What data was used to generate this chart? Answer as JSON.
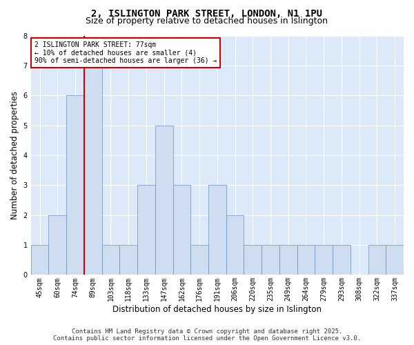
{
  "title": "2, ISLINGTON PARK STREET, LONDON, N1 1PU",
  "subtitle": "Size of property relative to detached houses in Islington",
  "xlabel": "Distribution of detached houses by size in Islington",
  "ylabel": "Number of detached properties",
  "categories": [
    "45sqm",
    "60sqm",
    "74sqm",
    "89sqm",
    "103sqm",
    "118sqm",
    "133sqm",
    "147sqm",
    "162sqm",
    "176sqm",
    "191sqm",
    "206sqm",
    "220sqm",
    "235sqm",
    "249sqm",
    "264sqm",
    "279sqm",
    "293sqm",
    "308sqm",
    "322sqm",
    "337sqm"
  ],
  "values": [
    1,
    2,
    6,
    7,
    1,
    1,
    3,
    5,
    3,
    1,
    3,
    2,
    1,
    1,
    1,
    1,
    1,
    1,
    0,
    1,
    1
  ],
  "bar_color": "#cfddf0",
  "bar_edge_color": "#6b8cba",
  "property_index": 3,
  "annotation_title": "2 ISLINGTON PARK STREET: 77sqm",
  "annotation_line1": "← 10% of detached houses are smaller (4)",
  "annotation_line2": "90% of semi-detached houses are larger (36) →",
  "red_line_color": "#cc0000",
  "ylim": [
    0,
    8
  ],
  "yticks": [
    0,
    1,
    2,
    3,
    4,
    5,
    6,
    7,
    8
  ],
  "bg_color": "#dce9f8",
  "grid_color": "#ffffff",
  "footer_line1": "Contains HM Land Registry data © Crown copyright and database right 2025.",
  "footer_line2": "Contains public sector information licensed under the Open Government Licence v3.0.",
  "title_fontsize": 10,
  "subtitle_fontsize": 9,
  "axis_label_fontsize": 8.5,
  "tick_fontsize": 7,
  "annotation_fontsize": 7,
  "footer_fontsize": 6.5
}
